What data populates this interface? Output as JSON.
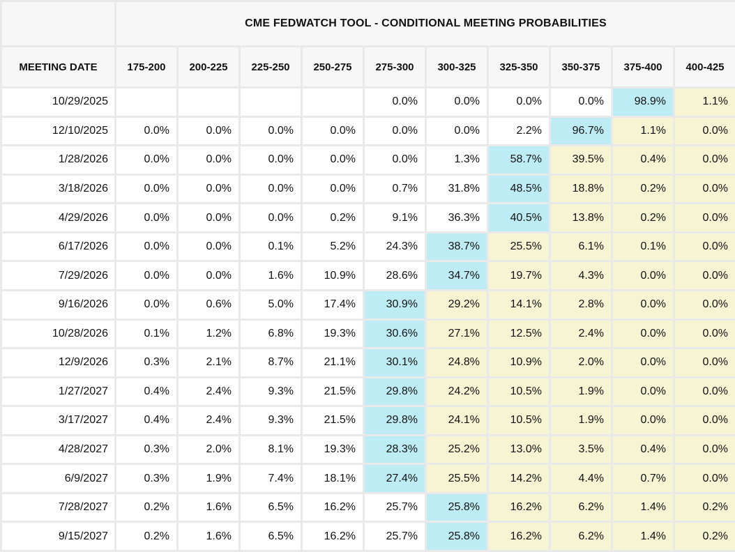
{
  "title": "CME FEDWATCH TOOL - CONDITIONAL MEETING PROBABILITIES",
  "meeting_date_header": "MEETING DATE",
  "rate_headers": [
    "175-200",
    "200-225",
    "225-250",
    "250-275",
    "275-300",
    "300-325",
    "325-350",
    "350-375",
    "375-400",
    "400-425"
  ],
  "colors": {
    "highlight_cyan": "#bdecf4",
    "highlight_yellow": "#f6f4d3",
    "header_background": "#f7f7f7",
    "cell_background": "#ffffff",
    "grid_gap": "#e9e9e9",
    "text": "#111111"
  },
  "rows": [
    {
      "date": "10/29/2025",
      "values": [
        "",
        "",
        "",
        "",
        "0.0%",
        "0.0%",
        "0.0%",
        "0.0%",
        "98.9%",
        "1.1%"
      ],
      "styles": [
        "p",
        "p",
        "p",
        "p",
        "p",
        "p",
        "p",
        "p",
        "c",
        "y"
      ]
    },
    {
      "date": "12/10/2025",
      "values": [
        "0.0%",
        "0.0%",
        "0.0%",
        "0.0%",
        "0.0%",
        "0.0%",
        "2.2%",
        "96.7%",
        "1.1%",
        "0.0%"
      ],
      "styles": [
        "p",
        "p",
        "p",
        "p",
        "p",
        "p",
        "p",
        "c",
        "y",
        "y"
      ]
    },
    {
      "date": "1/28/2026",
      "values": [
        "0.0%",
        "0.0%",
        "0.0%",
        "0.0%",
        "0.0%",
        "1.3%",
        "58.7%",
        "39.5%",
        "0.4%",
        "0.0%"
      ],
      "styles": [
        "p",
        "p",
        "p",
        "p",
        "p",
        "p",
        "c",
        "y",
        "y",
        "y"
      ]
    },
    {
      "date": "3/18/2026",
      "values": [
        "0.0%",
        "0.0%",
        "0.0%",
        "0.0%",
        "0.7%",
        "31.8%",
        "48.5%",
        "18.8%",
        "0.2%",
        "0.0%"
      ],
      "styles": [
        "p",
        "p",
        "p",
        "p",
        "p",
        "p",
        "c",
        "y",
        "y",
        "y"
      ]
    },
    {
      "date": "4/29/2026",
      "values": [
        "0.0%",
        "0.0%",
        "0.0%",
        "0.2%",
        "9.1%",
        "36.3%",
        "40.5%",
        "13.8%",
        "0.2%",
        "0.0%"
      ],
      "styles": [
        "p",
        "p",
        "p",
        "p",
        "p",
        "p",
        "c",
        "y",
        "y",
        "y"
      ]
    },
    {
      "date": "6/17/2026",
      "values": [
        "0.0%",
        "0.0%",
        "0.1%",
        "5.2%",
        "24.3%",
        "38.7%",
        "25.5%",
        "6.1%",
        "0.1%",
        "0.0%"
      ],
      "styles": [
        "p",
        "p",
        "p",
        "p",
        "p",
        "c",
        "y",
        "y",
        "y",
        "y"
      ]
    },
    {
      "date": "7/29/2026",
      "values": [
        "0.0%",
        "0.0%",
        "1.6%",
        "10.9%",
        "28.6%",
        "34.7%",
        "19.7%",
        "4.3%",
        "0.0%",
        "0.0%"
      ],
      "styles": [
        "p",
        "p",
        "p",
        "p",
        "p",
        "c",
        "y",
        "y",
        "y",
        "y"
      ]
    },
    {
      "date": "9/16/2026",
      "values": [
        "0.0%",
        "0.6%",
        "5.0%",
        "17.4%",
        "30.9%",
        "29.2%",
        "14.1%",
        "2.8%",
        "0.0%",
        "0.0%"
      ],
      "styles": [
        "p",
        "p",
        "p",
        "p",
        "c",
        "y",
        "y",
        "y",
        "y",
        "y"
      ]
    },
    {
      "date": "10/28/2026",
      "values": [
        "0.1%",
        "1.2%",
        "6.8%",
        "19.3%",
        "30.6%",
        "27.1%",
        "12.5%",
        "2.4%",
        "0.0%",
        "0.0%"
      ],
      "styles": [
        "p",
        "p",
        "p",
        "p",
        "c",
        "y",
        "y",
        "y",
        "y",
        "y"
      ]
    },
    {
      "date": "12/9/2026",
      "values": [
        "0.3%",
        "2.1%",
        "8.7%",
        "21.1%",
        "30.1%",
        "24.8%",
        "10.9%",
        "2.0%",
        "0.0%",
        "0.0%"
      ],
      "styles": [
        "p",
        "p",
        "p",
        "p",
        "c",
        "y",
        "y",
        "y",
        "y",
        "y"
      ]
    },
    {
      "date": "1/27/2027",
      "values": [
        "0.4%",
        "2.4%",
        "9.3%",
        "21.5%",
        "29.8%",
        "24.2%",
        "10.5%",
        "1.9%",
        "0.0%",
        "0.0%"
      ],
      "styles": [
        "p",
        "p",
        "p",
        "p",
        "c",
        "y",
        "y",
        "y",
        "y",
        "y"
      ]
    },
    {
      "date": "3/17/2027",
      "values": [
        "0.4%",
        "2.4%",
        "9.3%",
        "21.5%",
        "29.8%",
        "24.1%",
        "10.5%",
        "1.9%",
        "0.0%",
        "0.0%"
      ],
      "styles": [
        "p",
        "p",
        "p",
        "p",
        "c",
        "y",
        "y",
        "y",
        "y",
        "y"
      ]
    },
    {
      "date": "4/28/2027",
      "values": [
        "0.3%",
        "2.0%",
        "8.1%",
        "19.3%",
        "28.3%",
        "25.2%",
        "13.0%",
        "3.5%",
        "0.4%",
        "0.0%"
      ],
      "styles": [
        "p",
        "p",
        "p",
        "p",
        "c",
        "y",
        "y",
        "y",
        "y",
        "y"
      ]
    },
    {
      "date": "6/9/2027",
      "values": [
        "0.3%",
        "1.9%",
        "7.4%",
        "18.1%",
        "27.4%",
        "25.5%",
        "14.2%",
        "4.4%",
        "0.7%",
        "0.0%"
      ],
      "styles": [
        "p",
        "p",
        "p",
        "p",
        "c",
        "y",
        "y",
        "y",
        "y",
        "y"
      ]
    },
    {
      "date": "7/28/2027",
      "values": [
        "0.2%",
        "1.6%",
        "6.5%",
        "16.2%",
        "25.7%",
        "25.8%",
        "16.2%",
        "6.2%",
        "1.4%",
        "0.2%"
      ],
      "styles": [
        "p",
        "p",
        "p",
        "p",
        "p",
        "c",
        "y",
        "y",
        "y",
        "y"
      ]
    },
    {
      "date": "9/15/2027",
      "values": [
        "0.2%",
        "1.6%",
        "6.5%",
        "16.2%",
        "25.7%",
        "25.8%",
        "16.2%",
        "6.2%",
        "1.4%",
        "0.2%"
      ],
      "styles": [
        "p",
        "p",
        "p",
        "p",
        "p",
        "c",
        "y",
        "y",
        "y",
        "y"
      ]
    }
  ]
}
